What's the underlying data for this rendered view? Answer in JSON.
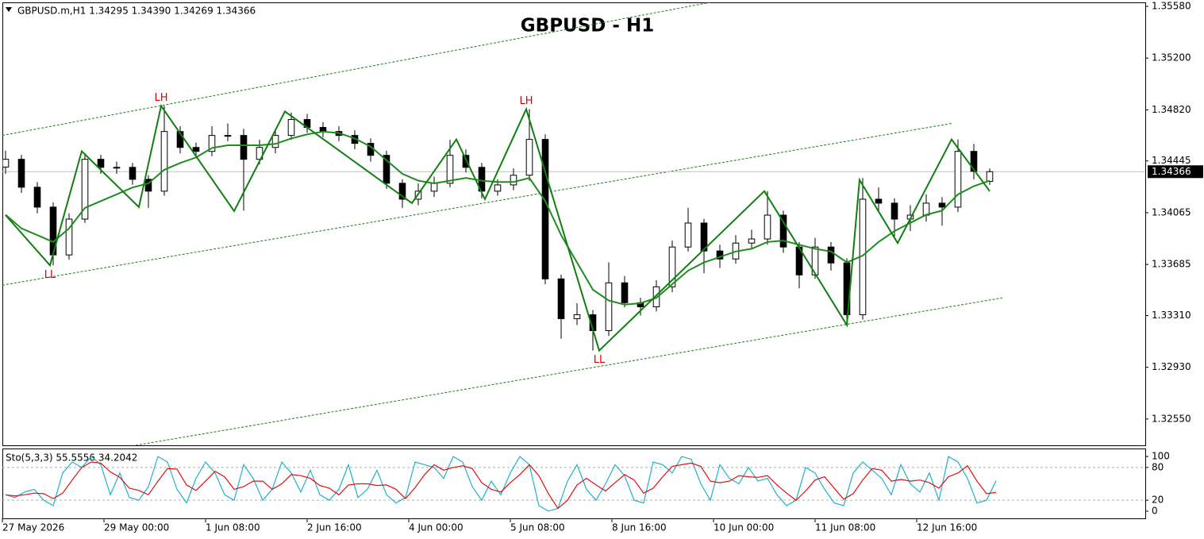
{
  "chart_data": [
    {
      "type": "candlestick",
      "title": "GBPUSD - H1",
      "header": "GBPUSD.m,H1  1.34295 1.34390 1.34269 1.34366",
      "x": [
        0,
        5,
        10,
        15,
        20,
        25,
        30,
        35,
        40,
        45,
        50,
        55,
        60,
        65,
        70,
        75,
        80,
        85,
        90,
        95,
        100,
        105,
        110,
        115,
        120,
        125,
        130,
        135,
        140,
        145,
        150,
        155,
        160,
        165,
        170,
        175,
        180,
        185,
        190,
        195,
        200,
        205,
        210,
        215,
        220,
        225,
        230,
        235,
        240,
        245,
        250,
        255,
        260,
        265,
        270,
        275,
        280,
        285,
        290,
        295,
        300,
        305,
        310
      ],
      "open": [
        1.344,
        1.34457,
        1.34252,
        1.34106,
        1.33755,
        1.34018,
        1.34457,
        1.34398,
        1.34398,
        1.3431,
        1.34223,
        1.34661,
        1.34544,
        1.34515,
        1.34632,
        1.34632,
        1.34457,
        1.34544,
        1.34632,
        1.34749,
        1.34691,
        1.34661,
        1.34632,
        1.34574,
        1.34486,
        1.34281,
        1.34164,
        1.34223,
        1.34281,
        1.34486,
        1.34398,
        1.34223,
        1.34269,
        1.3434,
        1.34603,
        1.33579,
        1.33287,
        1.33316,
        1.33199,
        1.3355,
        1.33404,
        1.33374,
        1.33521,
        1.33813,
        1.33989,
        1.33784,
        1.33725,
        1.33842,
        1.33872,
        1.34047,
        1.33813,
        1.33608,
        1.33813,
        1.33696,
        1.33316,
        1.34164,
        1.34135,
        1.34018,
        1.34047,
        1.34135,
        1.34106,
        1.34515,
        1.34295
      ],
      "high": [
        1.3452,
        1.3449,
        1.3429,
        1.3414,
        1.3406,
        1.345,
        1.3449,
        1.3444,
        1.3443,
        1.3434,
        1.34849,
        1.347,
        1.3458,
        1.347,
        1.3472,
        1.3468,
        1.346,
        1.3468,
        1.348,
        1.3479,
        1.3473,
        1.347,
        1.3467,
        1.3461,
        1.3452,
        1.3431,
        1.3428,
        1.3433,
        1.346,
        1.3453,
        1.3443,
        1.3431,
        1.3439,
        1.34825,
        1.3464,
        1.3361,
        1.334,
        1.3335,
        1.337,
        1.336,
        1.3344,
        1.3357,
        1.3386,
        1.341,
        1.3402,
        1.3383,
        1.339,
        1.3394,
        1.34223,
        1.3408,
        1.3385,
        1.3388,
        1.3385,
        1.3373,
        1.3432,
        1.3425,
        1.3417,
        1.3412,
        1.342,
        1.3418,
        1.34603,
        1.3457,
        1.3439
      ],
      "low": [
        1.3435,
        1.3421,
        1.3406,
        1.33678,
        1.3372,
        1.3399,
        1.3435,
        1.3435,
        1.3427,
        1.341,
        1.3419,
        1.345,
        1.3447,
        1.3448,
        1.3459,
        1.3408,
        1.3442,
        1.345,
        1.346,
        1.3465,
        1.3462,
        1.3459,
        1.3453,
        1.3444,
        1.3424,
        1.341,
        1.3412,
        1.3418,
        1.3425,
        1.3436,
        1.3417,
        1.3419,
        1.3423,
        1.343,
        1.3354,
        1.3314,
        1.3324,
        1.33053,
        1.3316,
        1.3337,
        1.3331,
        1.3334,
        1.3348,
        1.3378,
        1.3362,
        1.3366,
        1.3369,
        1.338,
        1.3383,
        1.3377,
        1.3351,
        1.3358,
        1.3364,
        1.3324,
        1.3328,
        1.3407,
        1.3389,
        1.3393,
        1.34,
        1.3397,
        1.3407,
        1.3431,
        1.34269
      ],
      "close": [
        1.34457,
        1.34252,
        1.34106,
        1.33755,
        1.34018,
        1.34457,
        1.34398,
        1.34398,
        1.3431,
        1.34223,
        1.34661,
        1.34544,
        1.34515,
        1.34632,
        1.34632,
        1.34457,
        1.34544,
        1.34632,
        1.34749,
        1.34691,
        1.34661,
        1.34632,
        1.34574,
        1.34486,
        1.34281,
        1.34164,
        1.34223,
        1.34281,
        1.34486,
        1.34398,
        1.34223,
        1.34269,
        1.3434,
        1.34603,
        1.33579,
        1.33287,
        1.33316,
        1.33199,
        1.3355,
        1.33404,
        1.33374,
        1.33521,
        1.33813,
        1.33989,
        1.33784,
        1.33725,
        1.33842,
        1.33872,
        1.34047,
        1.33813,
        1.33608,
        1.33813,
        1.33696,
        1.33316,
        1.34164,
        1.34135,
        1.34018,
        1.34047,
        1.34135,
        1.34106,
        1.34515,
        1.34369,
        1.34366
      ],
      "up_color": "#ffffff",
      "down_color": "#000000",
      "series": [
        {
          "color": "#1e8c1e",
          "values": [
            1.3405,
            1.3395,
            1.339,
            1.3385,
            1.3395,
            1.341,
            1.3415,
            1.342,
            1.3425,
            1.3428,
            1.3438,
            1.3443,
            1.3447,
            1.3454,
            1.3456,
            1.3456,
            1.3456,
            1.3457,
            1.3461,
            1.3464,
            1.3466,
            1.3465,
            1.3461,
            1.3455,
            1.3445,
            1.3435,
            1.343,
            1.3428,
            1.343,
            1.3432,
            1.343,
            1.3429,
            1.3429,
            1.3432,
            1.3415,
            1.339,
            1.337,
            1.335,
            1.3342,
            1.3339,
            1.334,
            1.3344,
            1.3354,
            1.3364,
            1.337,
            1.3374,
            1.3378,
            1.338,
            1.3385,
            1.3386,
            1.3383,
            1.338,
            1.3378,
            1.337,
            1.3375,
            1.3385,
            1.3393,
            1.3399,
            1.3405,
            1.3408,
            1.342,
            1.3426,
            1.343
          ]
        },
        {
          "color": "#0f7f0f",
          "x": [
            0,
            14,
            24,
            42,
            49,
            72,
            88,
            128,
            142,
            151,
            164,
            187,
            239,
            265,
            269,
            281,
            298,
            310
          ],
          "values": [
            1.34047,
            1.33678,
            1.34516,
            1.34106,
            1.34849,
            1.34077,
            1.34808,
            1.34135,
            1.34603,
            1.34164,
            1.34825,
            1.33053,
            1.34223,
            1.3324,
            1.34306,
            1.33842,
            1.34603,
            1.34223
          ]
        }
      ],
      "trendlines": [
        {
          "color": "#1e7a1e",
          "x": [
            -1,
            222
          ],
          "values": [
            1.34632,
            1.35609
          ]
        },
        {
          "color": "#1e7a1e",
          "x": [
            -1,
            298
          ],
          "values": [
            1.33533,
            1.3472
          ]
        },
        {
          "color": "#1e7a1e",
          "x": [
            41,
            314
          ],
          "values": [
            1.32357,
            1.3344
          ]
        }
      ],
      "annotations": [
        {
          "text": "LL",
          "x": 14,
          "y": 1.33678,
          "position": "below"
        },
        {
          "text": "LH",
          "x": 49,
          "y": 1.34849,
          "position": "above"
        },
        {
          "text": "LH",
          "x": 164,
          "y": 1.34825,
          "position": "above"
        },
        {
          "text": "LL",
          "x": 187,
          "y": 1.33053,
          "position": "below"
        }
      ],
      "current_price": 1.34366,
      "xlim": [
        -1,
        359
      ],
      "ylim": [
        1.32357,
        1.35609
      ],
      "yticks": [
        {
          "value": 1.3558,
          "label": "1.35580"
        },
        {
          "value": 1.352,
          "label": "1.35200"
        },
        {
          "value": 1.3482,
          "label": "1.34820"
        },
        1.34445,
        1.34065,
        1.33685,
        {
          "value": 1.3331,
          "label": "1.33310"
        },
        {
          "value": 1.3293,
          "label": "1.32930"
        },
        {
          "value": 1.3255,
          "label": "1.32550"
        }
      ],
      "xticks": [
        {
          "value": -1,
          "label": "27 May 2026"
        },
        {
          "value": 31,
          "label": "29 May 00:00"
        },
        {
          "value": 63,
          "label": "1 Jun 08:00"
        },
        {
          "value": 95,
          "label": "2 Jun 16:00"
        },
        {
          "value": 127,
          "label": "4 Jun 00:00"
        },
        {
          "value": 159,
          "label": "5 Jun 08:00"
        },
        {
          "value": 191,
          "label": "8 Jun 16:00"
        },
        {
          "value": 223,
          "label": "10 Jun 00:00"
        },
        {
          "value": 255,
          "label": "11 Jun 08:00"
        },
        {
          "value": 287,
          "label": "12 Jun 16:00"
        }
      ]
    },
    {
      "type": "line",
      "label": "Sto(5,3,3) 55.5556 34.2042",
      "x": [
        0,
        3,
        6,
        9,
        12,
        15,
        18,
        21,
        24,
        27,
        30,
        33,
        36,
        39,
        42,
        45,
        48,
        51,
        54,
        57,
        60,
        63,
        66,
        69,
        72,
        75,
        78,
        81,
        84,
        87,
        90,
        93,
        96,
        99,
        102,
        105,
        108,
        111,
        114,
        117,
        120,
        123,
        126,
        129,
        132,
        135,
        138,
        141,
        144,
        147,
        150,
        153,
        156,
        159,
        162,
        165,
        168,
        171,
        174,
        177,
        180,
        183,
        186,
        189,
        192,
        195,
        198,
        201,
        204,
        207,
        210,
        213,
        216,
        219,
        222,
        225,
        228,
        231,
        234,
        237,
        240,
        243,
        246,
        249,
        252,
        255,
        258,
        261,
        264,
        267,
        270,
        273,
        276,
        279,
        282,
        285,
        288,
        291,
        294,
        297,
        300,
        303,
        306,
        309,
        312
      ],
      "series": [
        {
          "color": "#20b2c8",
          "values": [
            30,
            25,
            35,
            40,
            20,
            10,
            70,
            90,
            80,
            100,
            85,
            30,
            70,
            25,
            20,
            45,
            100,
            90,
            40,
            15,
            60,
            90,
            70,
            30,
            20,
            85,
            60,
            20,
            40,
            90,
            70,
            35,
            75,
            30,
            20,
            40,
            85,
            25,
            40,
            75,
            30,
            15,
            25,
            90,
            85,
            80,
            60,
            100,
            90,
            45,
            20,
            55,
            30,
            70,
            100,
            85,
            10,
            0,
            5,
            55,
            85,
            40,
            20,
            50,
            85,
            65,
            20,
            15,
            90,
            85,
            70,
            100,
            95,
            50,
            20,
            85,
            60,
            50,
            80,
            55,
            60,
            30,
            10,
            20,
            80,
            70,
            40,
            15,
            10,
            70,
            90,
            75,
            60,
            30,
            85,
            50,
            35,
            70,
            20,
            100,
            90,
            60,
            15,
            20,
            55.5556
          ]
        },
        {
          "color": "#e01010",
          "values": [
            30,
            28,
            30,
            33,
            32,
            23,
            33,
            57,
            80,
            90,
            88,
            72,
            62,
            42,
            38,
            30,
            55,
            78,
            77,
            48,
            38,
            55,
            73,
            63,
            40,
            45,
            55,
            55,
            40,
            50,
            67,
            65,
            60,
            47,
            42,
            30,
            48,
            50,
            50,
            47,
            48,
            40,
            23,
            43,
            67,
            85,
            75,
            80,
            83,
            78,
            52,
            40,
            35,
            52,
            67,
            85,
            65,
            32,
            5,
            20,
            48,
            60,
            48,
            37,
            52,
            67,
            57,
            33,
            42,
            63,
            82,
            85,
            88,
            82,
            55,
            52,
            55,
            65,
            63,
            62,
            65,
            48,
            33,
            20,
            37,
            57,
            63,
            42,
            22,
            32,
            57,
            78,
            75,
            55,
            58,
            55,
            57,
            52,
            42,
            63,
            70,
            83,
            55,
            32,
            34.2042
          ]
        }
      ],
      "xlim": [
        -1,
        359
      ],
      "ylim": [
        -13.2,
        114.7
      ],
      "yticks": [
        100,
        80,
        20,
        0
      ],
      "levels": [
        80,
        20
      ]
    }
  ]
}
